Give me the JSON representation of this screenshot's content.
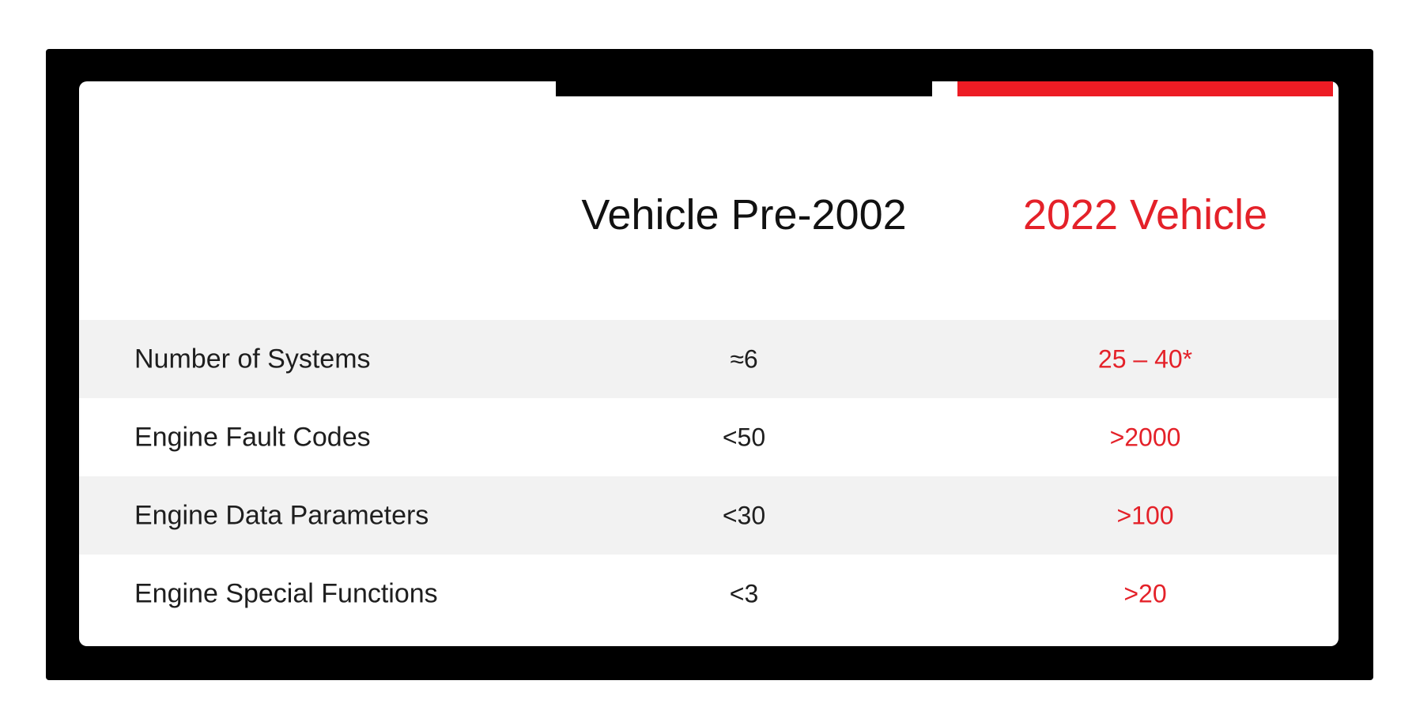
{
  "colors": {
    "accent_red": "#ed1c24",
    "red_text": "#e42129",
    "frame_black": "#000000",
    "header_text": "#111111",
    "body_text": "#1e1e1e",
    "row_alt_bg": "#f2f2f2",
    "card_bg": "#ffffff",
    "page_bg": "#ffffff"
  },
  "table": {
    "columns": [
      {
        "label": "",
        "accent": "none"
      },
      {
        "label": "Vehicle Pre-2002",
        "accent": "black"
      },
      {
        "label": "2022 Vehicle",
        "accent": "red"
      }
    ],
    "rows": [
      {
        "label": "Number of Systems",
        "pre2002": "≈6",
        "v2022": "25 – 40*"
      },
      {
        "label": "Engine Fault Codes",
        "pre2002": "<50",
        "v2022": ">2000"
      },
      {
        "label": "Engine Data Parameters",
        "pre2002": "<30",
        "v2022": ">100"
      },
      {
        "label": "Engine Special Functions",
        "pre2002": "<3",
        "v2022": ">20"
      }
    ]
  },
  "chart_data": {
    "type": "table",
    "title": "",
    "columns": [
      "",
      "Vehicle Pre-2002",
      "2022 Vehicle"
    ],
    "rows": [
      [
        "Number of Systems",
        "≈6",
        "25 – 40*"
      ],
      [
        "Engine Fault Codes",
        "<50",
        ">2000"
      ],
      [
        "Engine Data Parameters",
        "<30",
        ">100"
      ],
      [
        "Engine Special Functions",
        "<3",
        ">20"
      ]
    ],
    "layout_hints": {
      "column_accent_colors": [
        "none",
        "black",
        "red"
      ],
      "value_color_col2022": "#e42129",
      "alternating_row_background": "#f2f2f2",
      "outer_frame": "thick black rounded frame on white page"
    }
  }
}
